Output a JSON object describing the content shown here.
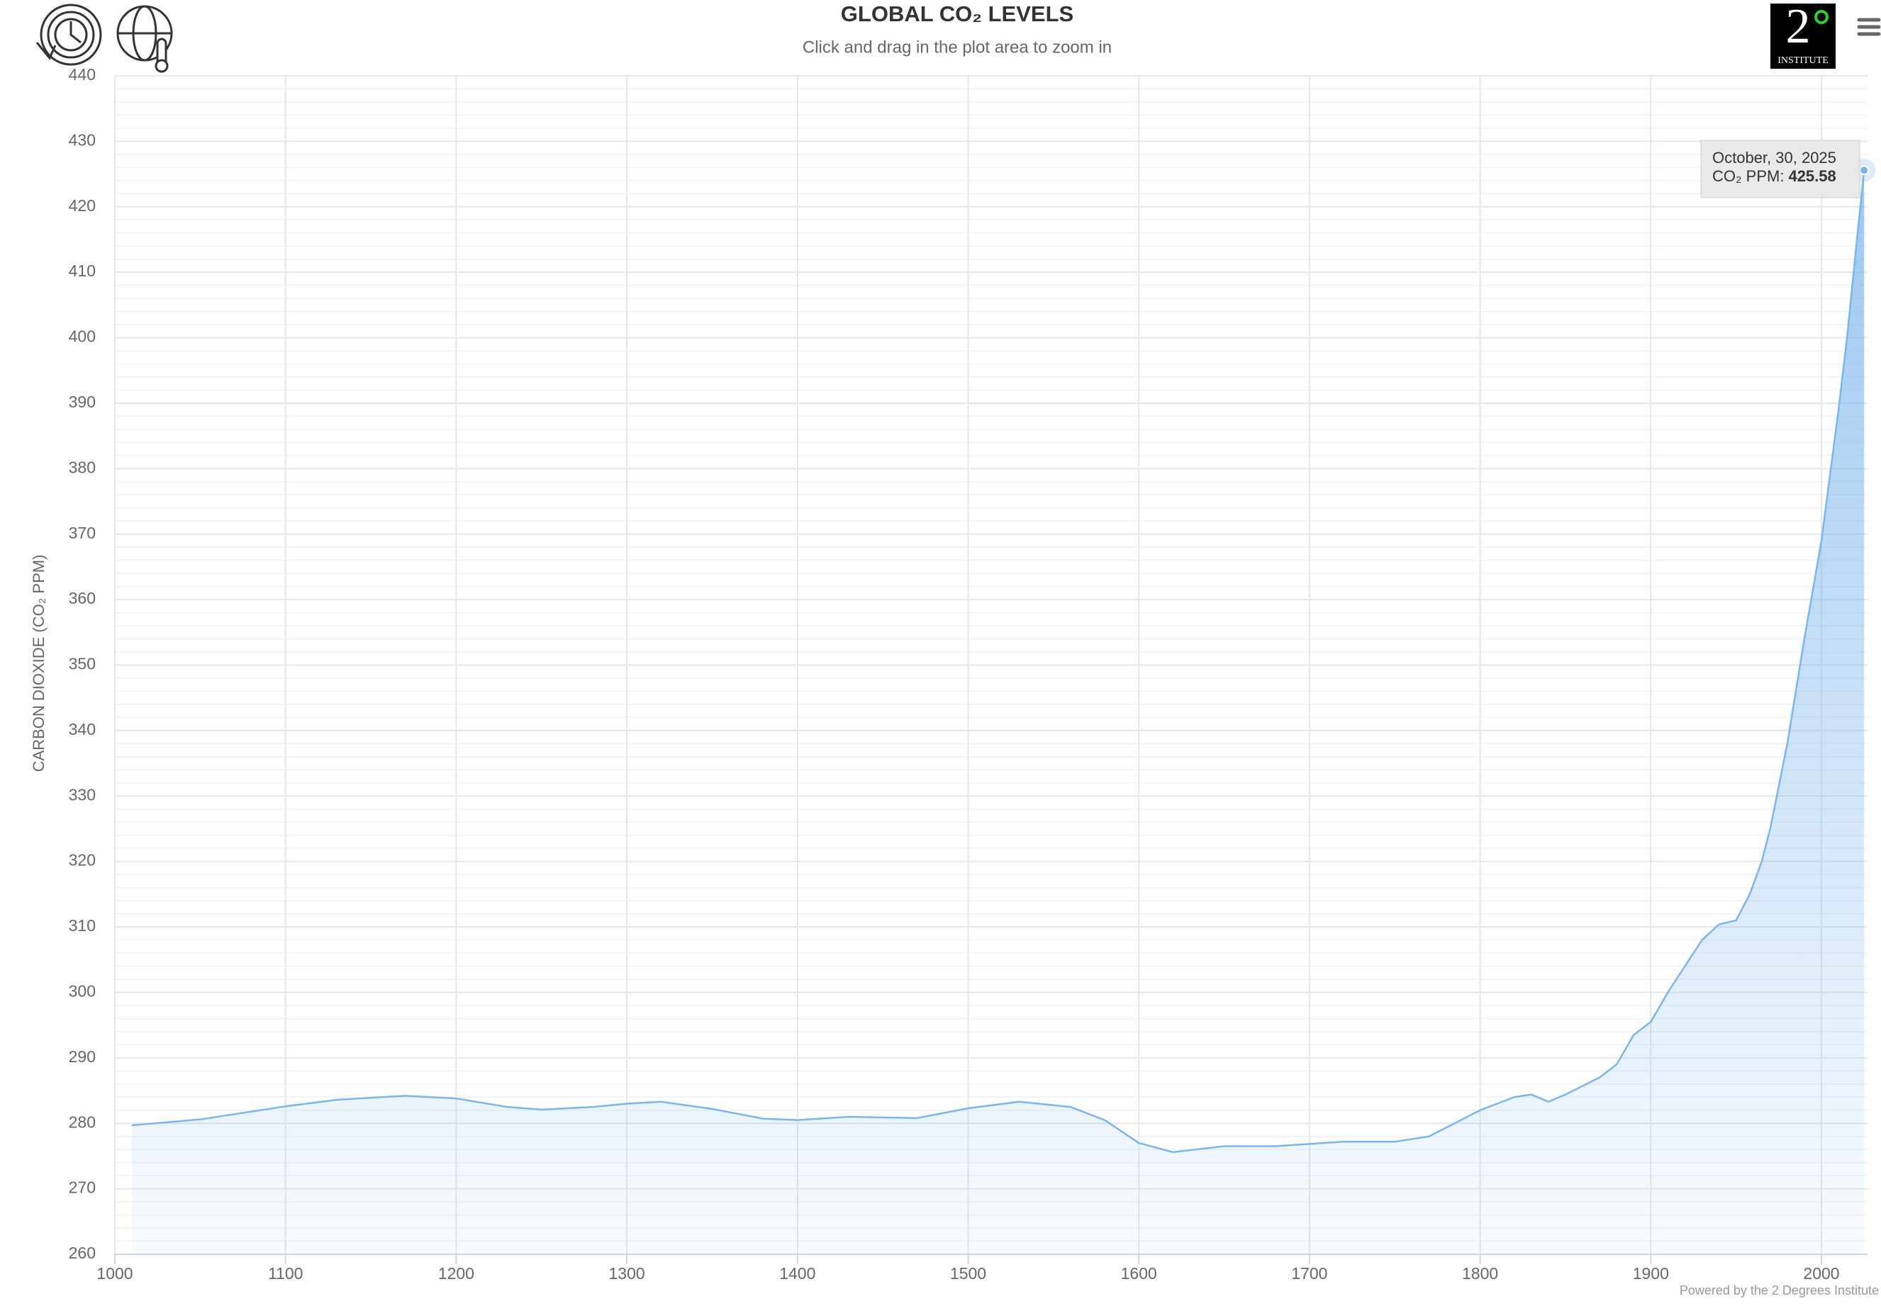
{
  "chart_data": {
    "type": "area",
    "title": "GLOBAL CO₂ LEVELS",
    "subtitle": "Click and drag in the plot area to zoom in",
    "y_label": "CARBON DIOXIDE (CO₂ PPM)",
    "credits": "Powered by the 2 Degrees Institute",
    "logo": {
      "digit": "2",
      "text": "INSTITUTE"
    },
    "xlim": [
      1000,
      2027
    ],
    "xticks": [
      1000,
      1100,
      1200,
      1300,
      1400,
      1500,
      1600,
      1700,
      1800,
      1900,
      2000
    ],
    "ylim": [
      260,
      440
    ],
    "yticks": [
      260,
      270,
      280,
      290,
      300,
      310,
      320,
      330,
      340,
      350,
      360,
      370,
      380,
      390,
      400,
      410,
      420,
      430,
      440
    ],
    "grid": true,
    "series": [
      {
        "name": "CO₂ PPM",
        "color": "#7cb5ec",
        "x": [
          1010,
          1050,
          1100,
          1130,
          1170,
          1200,
          1230,
          1250,
          1280,
          1300,
          1320,
          1350,
          1380,
          1400,
          1430,
          1470,
          1500,
          1530,
          1560,
          1580,
          1600,
          1620,
          1650,
          1680,
          1720,
          1750,
          1770,
          1800,
          1820,
          1830,
          1840,
          1850,
          1870,
          1880,
          1890,
          1900,
          1910,
          1920,
          1930,
          1940,
          1950,
          1958,
          1965,
          1970,
          1980,
          1990,
          2000,
          2010,
          2015,
          2020,
          2025
        ],
        "values": [
          279.7,
          280.6,
          282.6,
          283.6,
          284.2,
          283.8,
          282.5,
          282.1,
          282.5,
          283.0,
          283.3,
          282.2,
          280.7,
          280.5,
          281.0,
          280.8,
          282.3,
          283.3,
          282.5,
          280.5,
          277.0,
          275.6,
          276.5,
          276.5,
          277.2,
          277.2,
          278.0,
          282.0,
          284.0,
          284.4,
          283.3,
          284.4,
          287.0,
          289.0,
          293.5,
          295.5,
          300.0,
          304.0,
          308.0,
          310.4,
          311.0,
          315.0,
          320.0,
          325.0,
          338.0,
          354.0,
          369.0,
          389.0,
          400.0,
          413.0,
          425.58
        ]
      }
    ],
    "tooltip": {
      "date": "October, 30, 2025",
      "x": 2025,
      "label": "CO₂ PPM:",
      "value": 425.58
    }
  }
}
